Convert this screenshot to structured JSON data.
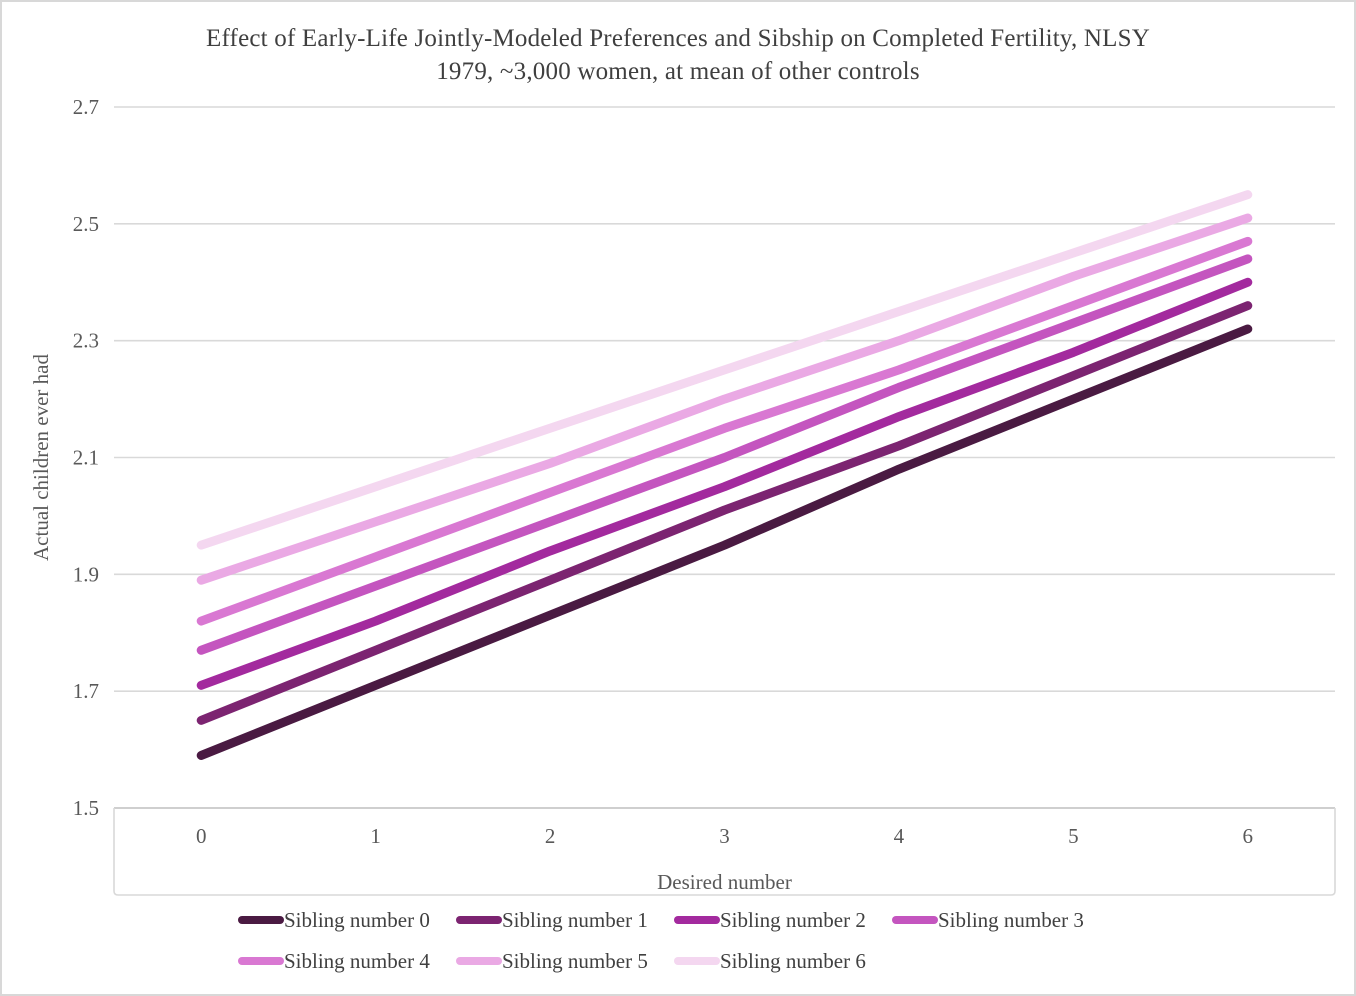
{
  "title": "Effect of Early-Life Jointly-Modeled Preferences and Sibship on Completed Fertility, NLSY 1979, ~3,000 women, at mean of other controls",
  "title_lines": [
    "Effect of Early-Life Jointly-Modeled Preferences and Sibship on Completed Fertility, NLSY",
    "1979, ~3,000 women, at mean of other controls"
  ],
  "chart_data": {
    "type": "line",
    "x": [
      0,
      1,
      2,
      3,
      4,
      5,
      6
    ],
    "xlabel": "Desired number",
    "ylabel": "Actual children ever had",
    "ylim": [
      1.5,
      2.7
    ],
    "yticks": [
      1.5,
      1.7,
      1.9,
      2.1,
      2.3,
      2.5,
      2.7
    ],
    "ytick_labels": [
      "1.5",
      "1.7",
      "1.9",
      "2.1",
      "2.3",
      "2.5",
      "2.7"
    ],
    "grid": true,
    "legend_position": "bottom",
    "series": [
      {
        "name": "Sibling number 0",
        "color": "#4a1a42",
        "values": [
          1.59,
          1.71,
          1.83,
          1.95,
          2.08,
          2.2,
          2.32
        ]
      },
      {
        "name": "Sibling number 1",
        "color": "#7c2471",
        "values": [
          1.65,
          1.77,
          1.89,
          2.01,
          2.12,
          2.24,
          2.36
        ]
      },
      {
        "name": "Sibling number 2",
        "color": "#a32a9e",
        "values": [
          1.71,
          1.82,
          1.94,
          2.05,
          2.17,
          2.28,
          2.4
        ]
      },
      {
        "name": "Sibling number 3",
        "color": "#c455bf",
        "values": [
          1.77,
          1.88,
          1.99,
          2.1,
          2.22,
          2.33,
          2.44
        ]
      },
      {
        "name": "Sibling number 4",
        "color": "#d978d2",
        "values": [
          1.82,
          1.93,
          2.04,
          2.15,
          2.25,
          2.36,
          2.47
        ]
      },
      {
        "name": "Sibling number 5",
        "color": "#eaa9e4",
        "values": [
          1.89,
          1.99,
          2.09,
          2.2,
          2.3,
          2.41,
          2.51
        ]
      },
      {
        "name": "Sibling number 6",
        "color": "#f4d7f0",
        "values": [
          1.95,
          2.05,
          2.15,
          2.25,
          2.35,
          2.45,
          2.55
        ]
      }
    ]
  },
  "colors": {
    "gridline": "#d9d9d9",
    "axis_line": "#bfbfbf",
    "frame_border": "#d8d8d8",
    "title_text": "#3f3f3f",
    "tick_text": "#595959",
    "legend_text": "#404040"
  }
}
